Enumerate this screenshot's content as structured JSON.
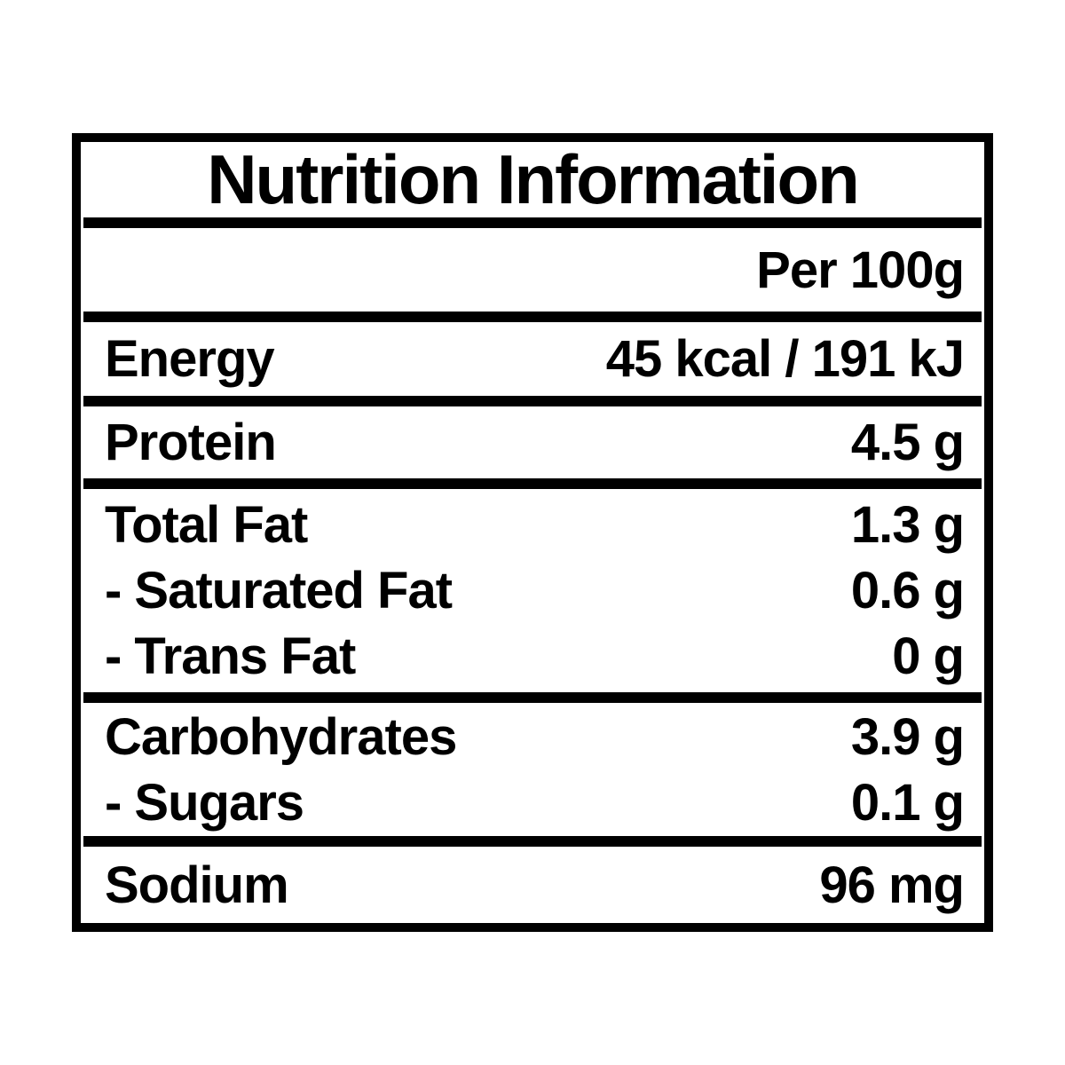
{
  "label": {
    "title": "Nutrition Information",
    "serving_header": "Per 100g",
    "colors": {
      "border": "#000000",
      "text": "#000000",
      "background": "#ffffff"
    },
    "sections": [
      {
        "rows": [
          {
            "name": "Energy",
            "value": "45 kcal / 191 kJ"
          }
        ]
      },
      {
        "rows": [
          {
            "name": "Protein",
            "value": "4.5 g"
          }
        ]
      },
      {
        "rows": [
          {
            "name": "Total Fat",
            "value": "1.3 g"
          },
          {
            "name": "- Saturated Fat",
            "value": "0.6 g"
          },
          {
            "name": "- Trans Fat",
            "value": "0 g"
          }
        ]
      },
      {
        "rows": [
          {
            "name": "Carbohydrates",
            "value": "3.9 g"
          },
          {
            "name": "- Sugars",
            "value": "0.1 g"
          }
        ]
      },
      {
        "rows": [
          {
            "name": "Sodium",
            "value": "96 mg"
          }
        ]
      }
    ]
  }
}
